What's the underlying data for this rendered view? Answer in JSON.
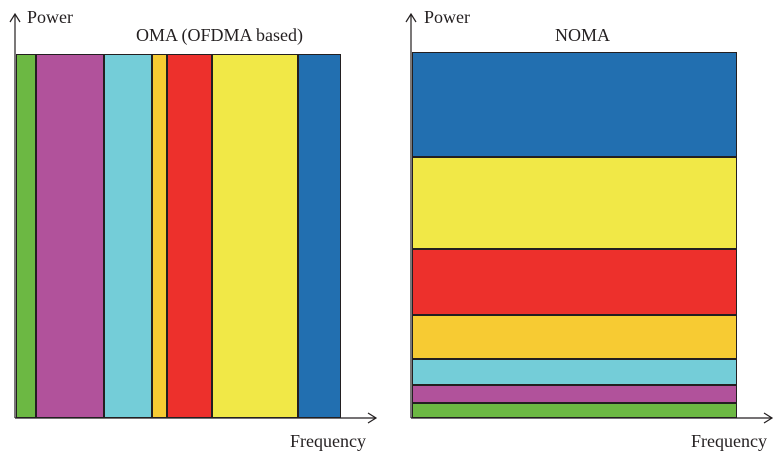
{
  "left_panel": {
    "title": "OMA (OFDMA based)",
    "y_axis_label": "Power",
    "x_axis_label": "Frequency",
    "bands": [
      {
        "name": "green-band",
        "color": "#6cb843"
      },
      {
        "name": "purple-band",
        "color": "#b1529b"
      },
      {
        "name": "cyan-band",
        "color": "#74cdd8"
      },
      {
        "name": "orange-band",
        "color": "#f7cb33"
      },
      {
        "name": "red-band",
        "color": "#ed302c"
      },
      {
        "name": "yellow-band",
        "color": "#f1e847"
      },
      {
        "name": "blue-band",
        "color": "#226fb0"
      }
    ]
  },
  "right_panel": {
    "title": "NOMA",
    "y_axis_label": "Power",
    "x_axis_label": "Frequency",
    "layers": [
      {
        "name": "blue-layer",
        "color": "#226fb0"
      },
      {
        "name": "yellow-layer",
        "color": "#f1e847"
      },
      {
        "name": "red-layer",
        "color": "#ed302c"
      },
      {
        "name": "orange-layer",
        "color": "#f7cb33"
      },
      {
        "name": "cyan-layer",
        "color": "#74cdd8"
      },
      {
        "name": "purple-layer",
        "color": "#b1529b"
      },
      {
        "name": "green-layer",
        "color": "#6cb843"
      }
    ]
  }
}
